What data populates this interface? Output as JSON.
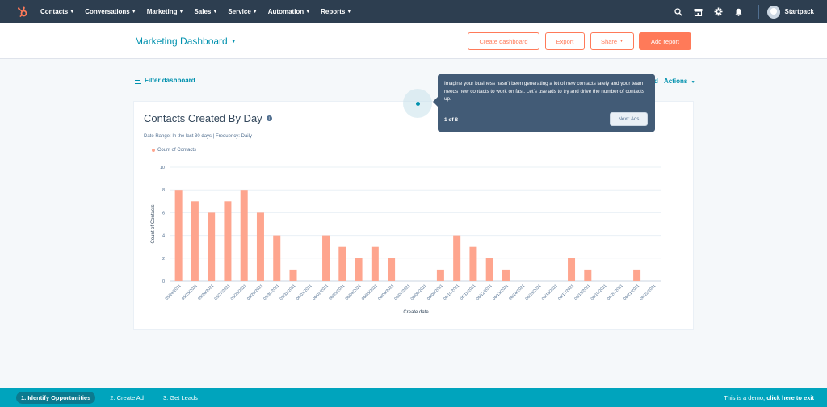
{
  "nav": {
    "logo_icon": "hubspot-sprocket-icon",
    "items": [
      {
        "label": "Contacts"
      },
      {
        "label": "Conversations"
      },
      {
        "label": "Marketing"
      },
      {
        "label": "Sales"
      },
      {
        "label": "Service"
      },
      {
        "label": "Automation"
      },
      {
        "label": "Reports"
      }
    ],
    "account_name": "Startpack"
  },
  "header": {
    "title": "Marketing Dashboard",
    "create_dashboard": "Create dashboard",
    "export": "Export",
    "share": "Share",
    "add_report": "Add report"
  },
  "filter_bar": {
    "filter_label": "Filter dashboard",
    "actions_label": "Actions",
    "hidden_fragment": "d"
  },
  "report": {
    "title": "Contacts Created By Day",
    "meta": "Date Range: In the last 30 days | Frequency: Daily"
  },
  "chart_data": {
    "type": "bar",
    "title": "Contacts Created By Day",
    "xlabel": "Create date",
    "ylabel": "Count of Contacts",
    "ylim": [
      0,
      10
    ],
    "yticks": [
      0,
      2,
      4,
      6,
      8,
      10
    ],
    "grid": true,
    "legend_position": "top-left",
    "color": "#fea58e",
    "categories": [
      "05/24/2021",
      "05/25/2021",
      "05/26/2021",
      "05/27/2021",
      "05/28/2021",
      "05/29/2021",
      "05/30/2021",
      "05/31/2021",
      "06/01/2021",
      "06/02/2021",
      "06/03/2021",
      "06/04/2021",
      "06/05/2021",
      "06/06/2021",
      "06/07/2021",
      "06/08/2021",
      "06/09/2021",
      "06/10/2021",
      "06/11/2021",
      "06/12/2021",
      "06/13/2021",
      "06/14/2021",
      "06/15/2021",
      "06/16/2021",
      "06/17/2021",
      "06/18/2021",
      "06/19/2021",
      "06/20/2021",
      "06/21/2021",
      "06/22/2021"
    ],
    "series": [
      {
        "name": "Count of Contacts",
        "values": [
          8,
          7,
          6,
          7,
          8,
          6,
          4,
          1,
          0,
          4,
          3,
          2,
          3,
          2,
          0,
          0,
          1,
          4,
          3,
          2,
          1,
          0,
          0,
          0,
          2,
          1,
          0,
          0,
          1,
          0
        ]
      }
    ]
  },
  "tour": {
    "text": "Imagine your business hasn't been generating a lot of new contacts lately and your team needs new contacts to work on fast. Let's use ads to try and drive the number of contacts up.",
    "step": "1 of 8",
    "next": "Next: Ads"
  },
  "bottom_bar": {
    "steps": [
      {
        "label": "1. Identify Opportunities"
      },
      {
        "label": "2. Create Ad"
      },
      {
        "label": "3. Get Leads"
      }
    ],
    "demo_text": "This is a demo, ",
    "exit_link": "click here to exit"
  }
}
